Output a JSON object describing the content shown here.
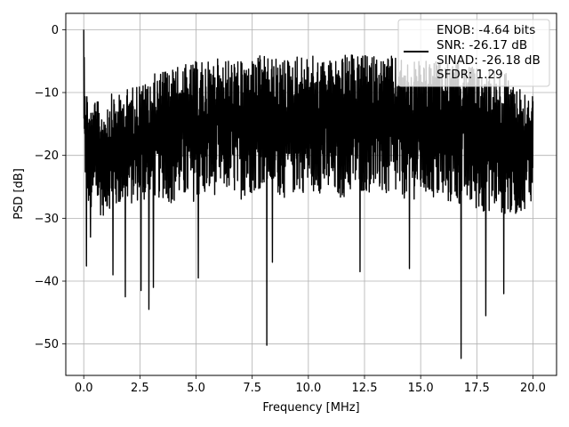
{
  "chart_data": {
    "type": "line",
    "title": "",
    "xlabel": "Frequency [MHz]",
    "ylabel": "PSD [dB]",
    "xlim": [
      -0.8,
      21.05
    ],
    "ylim": [
      -55,
      2.6
    ],
    "xticks": [
      0.0,
      2.5,
      5.0,
      7.5,
      10.0,
      12.5,
      15.0,
      17.5,
      20.0
    ],
    "xtick_labels": [
      "0.0",
      "2.5",
      "5.0",
      "7.5",
      "10.0",
      "12.5",
      "15.0",
      "17.5",
      "20.0"
    ],
    "yticks": [
      0,
      -10,
      -20,
      -30,
      -40,
      -50
    ],
    "ytick_labels": [
      "0",
      "−10",
      "−20",
      "−30",
      "−40",
      "−50"
    ],
    "grid": true,
    "legend_position": "top-right",
    "legend": [
      "ENOB: -4.64 bits",
      "SNR: -26.17 dB",
      "SINAD: -26.18 dB",
      "SFDR: 1.29"
    ],
    "series": [
      {
        "color": "#000000",
        "x_range": [
          0,
          20
        ],
        "envelope": {
          "x": [
            0.0,
            0.05,
            0.1,
            0.2,
            0.3,
            0.5,
            0.8,
            1.0,
            1.3,
            1.5,
            1.8,
            2.0,
            2.2,
            2.5,
            2.8,
            3.0,
            3.3,
            3.6,
            4.0,
            4.3,
            4.7,
            5.0,
            5.5,
            6.0,
            6.5,
            7.0,
            7.5,
            8.0,
            8.5,
            9.0,
            9.5,
            10.0,
            10.5,
            11.0,
            11.5,
            12.0,
            12.5,
            13.0,
            13.5,
            14.0,
            14.5,
            15.0,
            15.5,
            16.0,
            16.5,
            17.0,
            17.5,
            18.0,
            18.5,
            19.0,
            19.5,
            20.0
          ],
          "upper": [
            0,
            -4,
            -8,
            -11,
            -12,
            -11,
            -12,
            -11,
            -10,
            -10.5,
            -10,
            -9,
            -9,
            -8,
            -8.5,
            -7,
            -7,
            -6,
            -6,
            -5.5,
            -5.5,
            -5,
            -5,
            -4.5,
            -4.5,
            -5,
            -4.5,
            -4,
            -4.5,
            -4.5,
            -4,
            -4,
            -4.5,
            -4.5,
            -4,
            -4,
            -4,
            -4,
            -4,
            -4.5,
            -5,
            -5,
            -5,
            -5,
            -5.5,
            -5.5,
            -6,
            -5.5,
            -6.5,
            -7,
            -9,
            -10
          ],
          "lower": [
            -21,
            -24,
            -25,
            -28,
            -30,
            -28,
            -30,
            -29,
            -28,
            -29,
            -27,
            -28,
            -28,
            -27,
            -28,
            -28,
            -27,
            -27,
            -28,
            -27,
            -28,
            -27,
            -27,
            -26,
            -26,
            -27,
            -26,
            -25,
            -26,
            -27,
            -26,
            -26,
            -26,
            -27,
            -27,
            -26,
            -26,
            -26,
            -27,
            -27,
            -27,
            -27,
            -27,
            -28,
            -28,
            -28,
            -29,
            -29,
            -29,
            -30,
            -29,
            -27
          ]
        },
        "dips": [
          {
            "x": 0.12,
            "y": -37.6
          },
          {
            "x": 0.3,
            "y": -33.0
          },
          {
            "x": 1.3,
            "y": -39.0
          },
          {
            "x": 1.85,
            "y": -42.5
          },
          {
            "x": 2.55,
            "y": -41.5
          },
          {
            "x": 2.9,
            "y": -44.5
          },
          {
            "x": 3.1,
            "y": -41.0
          },
          {
            "x": 5.1,
            "y": -39.5
          },
          {
            "x": 8.15,
            "y": -50.2
          },
          {
            "x": 8.4,
            "y": -37.0
          },
          {
            "x": 12.3,
            "y": -38.5
          },
          {
            "x": 14.5,
            "y": -38.0
          },
          {
            "x": 16.8,
            "y": -52.3
          },
          {
            "x": 17.9,
            "y": -45.5
          },
          {
            "x": 18.7,
            "y": -42.0
          }
        ],
        "peak": {
          "x": 0.0,
          "y": 0.0
        }
      }
    ]
  }
}
